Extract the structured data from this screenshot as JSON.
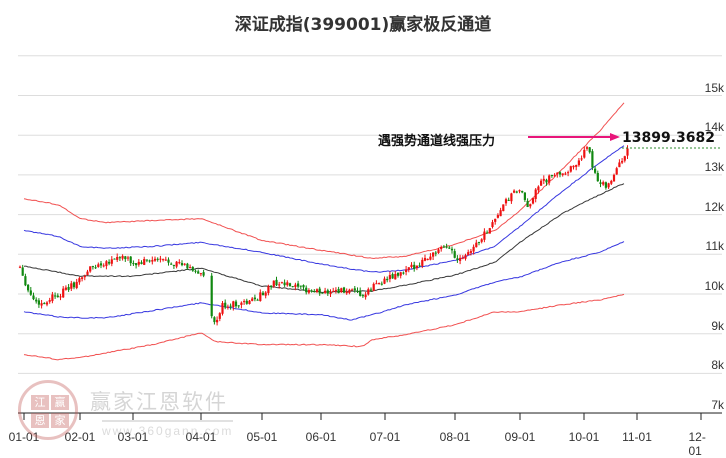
{
  "title": "深证成指(399001)赢家极反通道",
  "annotation": {
    "text": "遇强势通道线强压力",
    "value": "13899.3682",
    "arrow_color": "#e8157a",
    "dotted_color": "#2e8b2e"
  },
  "watermark": {
    "seal_chars": [
      "江",
      "赢",
      "恩",
      "家"
    ],
    "name": "赢家江恩软件",
    "url": "www.360gann.com"
  },
  "colors": {
    "up_candle": "#ee1111",
    "down_candle": "#118811",
    "outer_band": "#ee3333",
    "inner_band": "#2222dd",
    "mid_line": "#222222",
    "grid": "#dddddd"
  },
  "y_axis": {
    "labels": [
      "15k",
      "14k",
      "13k",
      "12k",
      "11k",
      "10k",
      "9k",
      "8k",
      "7k"
    ]
  },
  "x_axis": {
    "labels": [
      "01-01",
      "02-01",
      "03-01",
      "04-01",
      "05-01",
      "06-01",
      "07-01",
      "08-01",
      "09-01",
      "10-01",
      "11-01",
      "12-01"
    ]
  },
  "chart_data": {
    "type": "candlestick-with-channels",
    "title": "深证成指(399001)赢家极反通道",
    "xlabel": "",
    "ylabel": "",
    "ylim": [
      7000,
      16000
    ],
    "yticks": [
      7000,
      8000,
      9000,
      10000,
      11000,
      12000,
      13000,
      14000,
      15000,
      16000
    ],
    "x_ticks": [
      "01-01",
      "02-01",
      "03-01",
      "04-01",
      "05-01",
      "06-01",
      "07-01",
      "08-01",
      "09-01",
      "10-01",
      "11-01",
      "12-01"
    ],
    "grid": true,
    "annotation": {
      "label": "遇强势通道线强压力",
      "value": 13899.3682
    },
    "series": [
      {
        "name": "upper_outer_red",
        "x": [
          "01-01",
          "01-20",
          "02-01",
          "02-15",
          "03-10",
          "04-01",
          "05-01",
          "06-01",
          "06-25",
          "07-10",
          "08-01",
          "08-20",
          "09-01",
          "09-20",
          "10-10",
          "10-25"
        ],
        "values": [
          12400,
          12250,
          11900,
          11800,
          11850,
          11900,
          11350,
          11100,
          10900,
          10950,
          11250,
          11600,
          12100,
          13100,
          14100,
          14850
        ]
      },
      {
        "name": "upper_inner_blue",
        "x": [
          "01-01",
          "01-20",
          "02-01",
          "02-15",
          "03-10",
          "04-01",
          "05-01",
          "06-01",
          "06-25",
          "07-10",
          "08-01",
          "08-20",
          "09-01",
          "09-20",
          "10-10",
          "10-25"
        ],
        "values": [
          11600,
          11450,
          11200,
          11150,
          11200,
          11300,
          11050,
          10750,
          10550,
          10600,
          10850,
          11200,
          11700,
          12550,
          13300,
          13750
        ]
      },
      {
        "name": "middle_black",
        "x": [
          "01-01",
          "01-20",
          "02-01",
          "03-01",
          "04-01",
          "05-01",
          "06-01",
          "06-25",
          "07-10",
          "08-01",
          "08-20",
          "09-01",
          "09-20",
          "10-10",
          "10-25"
        ],
        "values": [
          10700,
          10550,
          10450,
          10450,
          10650,
          10200,
          10050,
          10075,
          10225,
          10475,
          10800,
          11300,
          12000,
          12500,
          12800
        ]
      },
      {
        "name": "lower_inner_blue",
        "x": [
          "01-01",
          "01-20",
          "02-01",
          "02-15",
          "04-01",
          "04-08",
          "05-01",
          "06-01",
          "06-15",
          "06-25",
          "07-10",
          "08-01",
          "08-20",
          "09-01",
          "09-20",
          "10-10",
          "10-25"
        ],
        "values": [
          9550,
          9425,
          9400,
          9400,
          9775,
          9725,
          9525,
          9475,
          9350,
          9475,
          9725,
          9975,
          10300,
          10425,
          10800,
          11050,
          11325
        ]
      },
      {
        "name": "lower_outer_red",
        "x": [
          "01-01",
          "01-20",
          "02-01",
          "03-10",
          "04-01",
          "04-08",
          "05-01",
          "06-01",
          "06-20",
          "06-25",
          "07-10",
          "08-01",
          "08-20",
          "09-01",
          "09-20",
          "10-10",
          "10-25"
        ],
        "values": [
          8475,
          8350,
          8400,
          8725,
          9025,
          8800,
          8725,
          8725,
          8675,
          8850,
          8975,
          9225,
          9550,
          9550,
          9725,
          9850,
          10000
        ]
      }
    ],
    "ohlc_summary": {
      "start_close": 10700,
      "jan_low": 9700,
      "mar_high": 11050,
      "apr_low": 9100,
      "jul_low": 9950,
      "aug_high": 11300,
      "sep_high": 13100,
      "oct_high": 13800,
      "oct_low": 12600,
      "last_close": 13650
    }
  }
}
